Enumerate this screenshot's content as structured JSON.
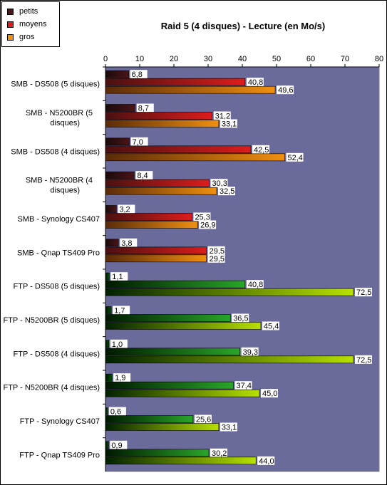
{
  "colors": {
    "plot_bg": "#6b6b9b",
    "petits": "#4a1418",
    "moyens": "#dd1c1c",
    "gros": "#f09010",
    "ftp_dark": "#005000",
    "ftp_mid": "#29a629",
    "ftp_light": "#b8e000"
  },
  "chart_data": {
    "type": "bar",
    "orientation": "horizontal",
    "title": "Raid 5 (4 disques) - Lecture (en Mo/s)",
    "xlim": [
      0,
      80
    ],
    "xticks": [
      0,
      10,
      20,
      30,
      40,
      50,
      60,
      70,
      80
    ],
    "x_axis_position": "top",
    "legend_placement": "top-left",
    "categories": [
      [
        "SMB - DS508 (5 disques)"
      ],
      [
        "SMB - N5200BR (5",
        "disques)"
      ],
      [
        "SMB - DS508 (4 disques)"
      ],
      [
        "SMB - N5200BR (4",
        "disques)"
      ],
      [
        "SMB - Synology CS407"
      ],
      [
        "SMB - Qnap TS409 Pro"
      ],
      [
        "FTP - DS508 (5 disques)"
      ],
      [
        "FTP - N5200BR (5 disques)"
      ],
      [
        "FTP - DS508 (4 disques)"
      ],
      [
        "FTP - N5200BR (4 disques)"
      ],
      [
        "FTP - Synology CS407"
      ],
      [
        "FTP - Qnap TS409 Pro"
      ]
    ],
    "series": [
      {
        "name": "petits",
        "values": [
          6.8,
          8.7,
          7.0,
          8.4,
          3.2,
          3.8,
          1.1,
          1.7,
          1.0,
          1.9,
          0.6,
          0.9
        ],
        "labels": [
          "6,8",
          "8,7",
          "7,0",
          "8,4",
          "3,2",
          "3,8",
          "1,1",
          "1,7",
          "1,0",
          "1,9",
          "0,6",
          "0,9"
        ]
      },
      {
        "name": "moyens",
        "values": [
          40.8,
          31.2,
          42.5,
          30.3,
          25.3,
          29.5,
          40.8,
          36.5,
          39.3,
          37.4,
          25.6,
          30.2
        ],
        "labels": [
          "40,8",
          "31,2",
          "42,5",
          "30,3",
          "25,3",
          "29,5",
          "40,8",
          "36,5",
          "39,3",
          "37,4",
          "25,6",
          "30,2"
        ]
      },
      {
        "name": "gros",
        "values": [
          49.6,
          33.1,
          52.4,
          32.5,
          26.9,
          29.5,
          72.5,
          45.4,
          72.5,
          45.0,
          33.1,
          44.0
        ],
        "labels": [
          "49,6",
          "33,1",
          "52,4",
          "32,5",
          "26,9",
          "29,5",
          "72,5",
          "45,4",
          "72,5",
          "45,0",
          "33,1",
          "44,0"
        ]
      }
    ],
    "grid": false
  }
}
